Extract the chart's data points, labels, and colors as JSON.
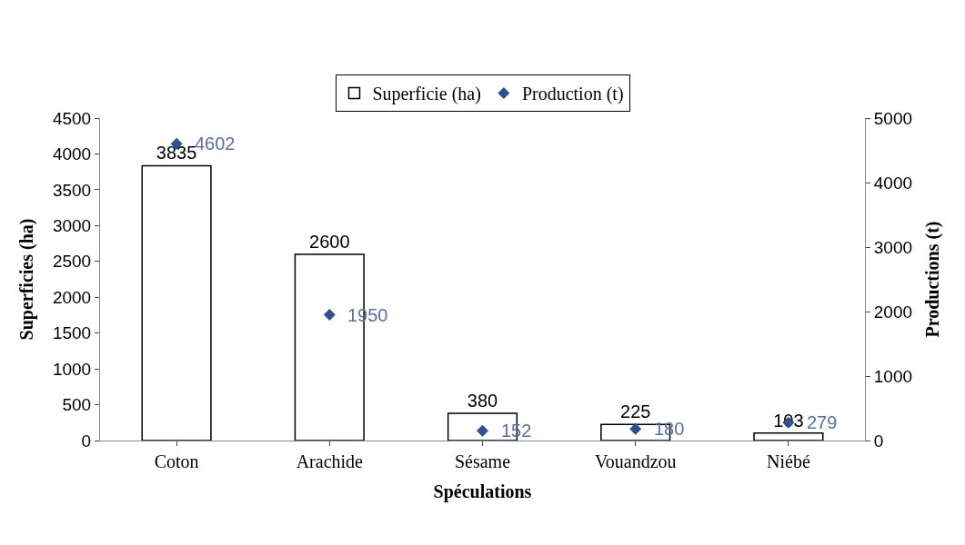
{
  "chart_data": {
    "type": "bar",
    "xlabel": "Spéculations",
    "ylabel": "Superficies (ha)",
    "y2label": "Productions (t)",
    "categories": [
      "Coton",
      "Arachide",
      "Sésame",
      "Vouandzou",
      "Niébé"
    ],
    "series": [
      {
        "name": "Superficie (ha)",
        "color": "#ffffff",
        "values": [
          3835,
          2600,
          380,
          225,
          103
        ],
        "data_labels": true
      },
      {
        "name": "Production (t)",
        "type": "scatter",
        "axis": "y2",
        "color": "#2f4f8f",
        "marker": "diamond",
        "values": [
          4602,
          1950,
          152,
          180,
          279
        ],
        "data_labels": true
      }
    ],
    "ylim": [
      0,
      4500
    ],
    "yticks": [
      0,
      500,
      1000,
      1500,
      2000,
      2500,
      3000,
      3500,
      4000,
      4500
    ],
    "y2lim": [
      0,
      5000
    ],
    "y2ticks": [
      0,
      1000,
      2000,
      3000,
      4000,
      5000
    ],
    "legend": "top"
  }
}
